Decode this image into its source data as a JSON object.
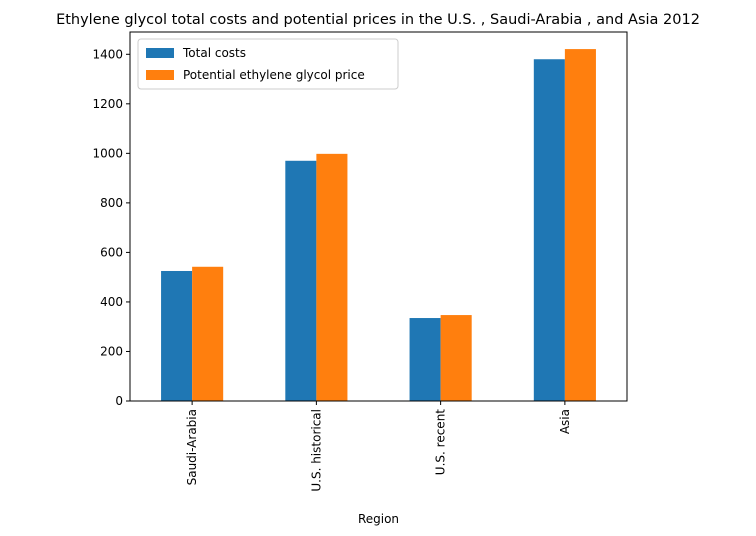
{
  "chart_data": {
    "type": "bar",
    "title": "Ethylene glycol total costs and potential prices in the U.S. , Saudi-Arabia , and Asia 2012",
    "xlabel": "Region",
    "ylabel": "",
    "categories": [
      "Saudi-Arabia",
      "U.S. historical",
      "U.S. recent",
      "Asia"
    ],
    "series": [
      {
        "name": "Total costs",
        "color": "#1f77b4",
        "values": [
          525,
          970,
          335,
          1380
        ]
      },
      {
        "name": "Potential ethylene glycol price",
        "color": "#ff7f0e",
        "values": [
          542,
          998,
          347,
          1421
        ]
      }
    ],
    "ylim": [
      0,
      1490
    ],
    "yticks": [
      "0",
      "200",
      "400",
      "600",
      "800",
      "1000",
      "1200",
      "1400"
    ],
    "grid": false,
    "legend_position": "top-left",
    "xtick_rotation": "vertical"
  }
}
